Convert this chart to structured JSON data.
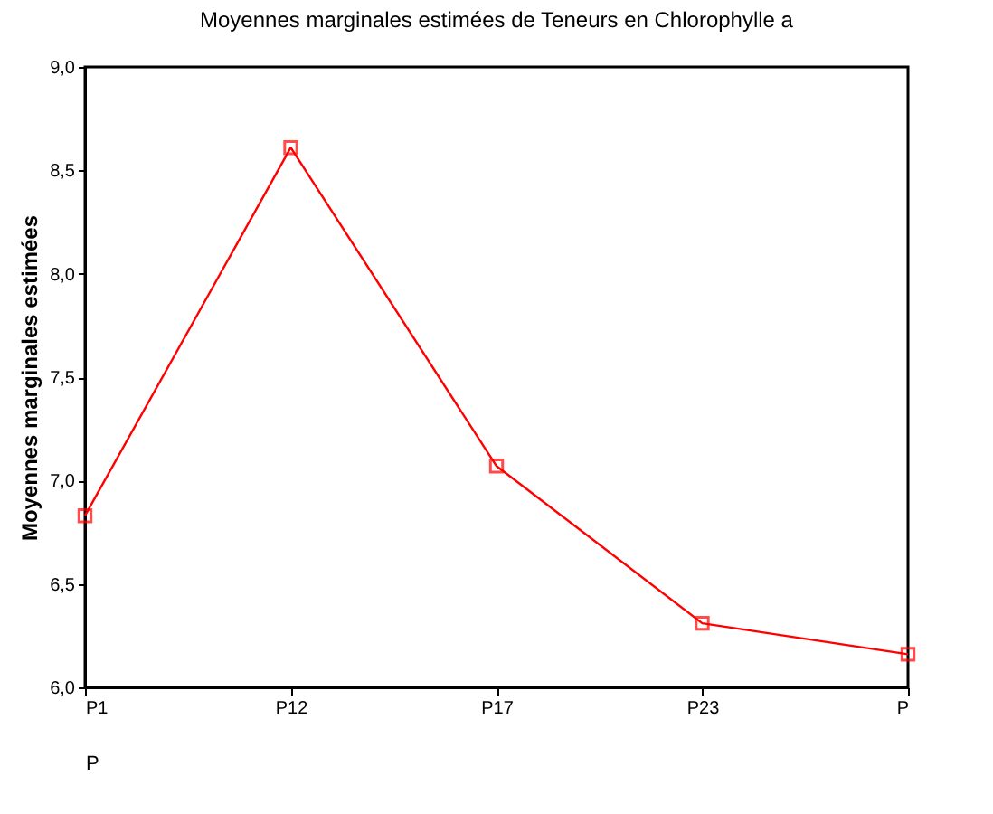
{
  "chart_data": {
    "type": "line",
    "title": "Moyennes marginales estimées de Teneurs en Chlorophylle a",
    "xlabel": "P",
    "ylabel": "Moyennes marginales estimées",
    "categories": [
      "P1",
      "P12",
      "P17",
      "P23",
      "P"
    ],
    "series": [
      {
        "color": "#ff0000",
        "values": [
          6.83,
          8.61,
          7.07,
          6.31,
          6.16
        ]
      }
    ],
    "ylim": [
      6,
      9
    ],
    "yticks": [
      {
        "value": 6,
        "label": "6,0"
      },
      {
        "value": 6.5,
        "label": "6,5"
      },
      {
        "value": 7,
        "label": "7,0"
      },
      {
        "value": 7.5,
        "label": "7,5"
      },
      {
        "value": 8,
        "label": "8,0"
      },
      {
        "value": 8.5,
        "label": "8,5"
      },
      {
        "value": 9,
        "label": "9,0"
      }
    ],
    "grid": false,
    "legend": false,
    "marker": "square",
    "line_style": "solid"
  }
}
